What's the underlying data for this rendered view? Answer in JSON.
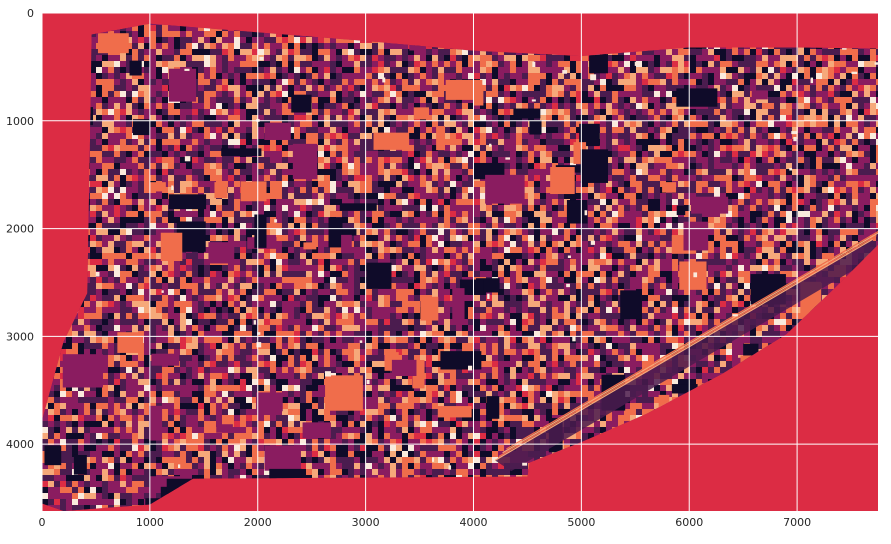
{
  "chart_data": {
    "type": "heatmap",
    "title": "",
    "xlabel": "",
    "ylabel": "",
    "xlim": [
      0,
      7750
    ],
    "ylim": [
      4620,
      0
    ],
    "x_ticks": [
      0,
      1000,
      2000,
      3000,
      4000,
      5000,
      6000,
      7000
    ],
    "y_ticks": [
      0,
      1000,
      2000,
      3000,
      4000
    ],
    "grid": true,
    "grid_color": "#ffffff",
    "y_inverted": true,
    "colormap": "rocket",
    "background_class_color": "#dc2c44",
    "class_colors": [
      "#0f0b29",
      "#4b1c4f",
      "#8a1c60",
      "#dc2c44",
      "#f06d4b",
      "#f6a97a",
      "#faebdd"
    ],
    "image_extent": {
      "x": [
        0,
        7750
      ],
      "y": [
        0,
        4620
      ]
    }
  }
}
